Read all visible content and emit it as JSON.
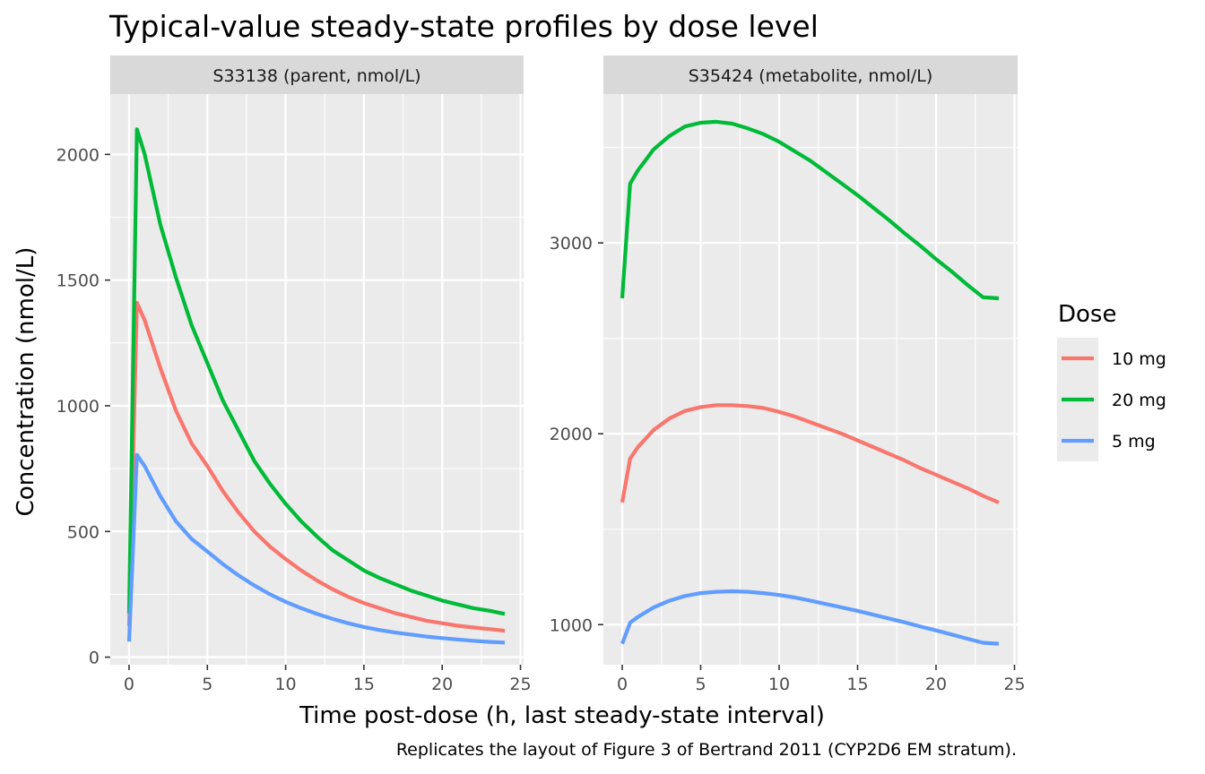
{
  "chart_data": {
    "type": "line",
    "title": "Typical-value steady-state profiles by dose level",
    "xlabel": "Time post-dose (h, last steady-state interval)",
    "ylabel": "Concentration (nmol/L)",
    "caption": "Replicates the layout of Figure 3 of Bertrand 2011 (CYP2D6 EM stratum).",
    "legend": {
      "title": "Dose",
      "position": "right",
      "entries": [
        {
          "label": "10 mg",
          "color": "#F8766D"
        },
        {
          "label": "20 mg",
          "color": "#00BA38"
        },
        {
          "label": "5 mg",
          "color": "#619CFF"
        }
      ]
    },
    "grid": true,
    "panels": [
      {
        "strip": "S33138 (parent, nmol/L)",
        "xlim": [
          -1.2,
          25.2
        ],
        "ylim": [
          -30,
          2240
        ],
        "x_ticks": [
          0,
          5,
          10,
          15,
          20,
          25
        ],
        "x_tick_labels": [
          "0",
          "5",
          "10",
          "15",
          "20",
          "25"
        ],
        "y_ticks": [
          0,
          500,
          1000,
          1500,
          2000
        ],
        "y_tick_labels": [
          "0",
          "500",
          "1000",
          "1500",
          "2000"
        ],
        "series": [
          {
            "name": "10 mg",
            "color": "#F8766D",
            "x": [
              0,
              0.5,
              1,
              2,
              3,
              4,
              5,
              6,
              7,
              8,
              9,
              10,
              11,
              12,
              13,
              14,
              15,
              16,
              17,
              18,
              19,
              20,
              21,
              22,
              23,
              24
            ],
            "y": [
              125,
              1410,
              1340,
              1150,
              980,
              850,
              760,
              660,
              575,
              500,
              440,
              390,
              345,
              305,
              270,
              240,
              215,
              195,
              175,
              160,
              145,
              135,
              125,
              118,
              112,
              105
            ]
          },
          {
            "name": "20 mg",
            "color": "#00BA38",
            "x": [
              0,
              0.5,
              1,
              2,
              3,
              4,
              5,
              6,
              7,
              8,
              9,
              10,
              11,
              12,
              13,
              14,
              15,
              16,
              17,
              18,
              19,
              20,
              21,
              22,
              23,
              24
            ],
            "y": [
              175,
              2100,
              2000,
              1720,
              1510,
              1320,
              1170,
              1020,
              900,
              780,
              690,
              610,
              540,
              480,
              425,
              385,
              345,
              315,
              290,
              265,
              245,
              225,
              210,
              195,
              185,
              172
            ]
          },
          {
            "name": "5 mg",
            "color": "#619CFF",
            "x": [
              0,
              0.5,
              1,
              2,
              3,
              4,
              5,
              6,
              7,
              8,
              9,
              10,
              11,
              12,
              13,
              14,
              15,
              16,
              17,
              18,
              19,
              20,
              21,
              22,
              23,
              24
            ],
            "y": [
              62,
              805,
              760,
              640,
              540,
              470,
              420,
              370,
              325,
              285,
              250,
              220,
              195,
              172,
              152,
              135,
              120,
              108,
              98,
              90,
              82,
              76,
              70,
              65,
              61,
              58
            ]
          }
        ]
      },
      {
        "strip": "S35424 (metabolite, nmol/L)",
        "xlim": [
          -1.2,
          25.2
        ],
        "ylim": [
          790,
          3780
        ],
        "x_ticks": [
          0,
          5,
          10,
          15,
          20,
          25
        ],
        "x_tick_labels": [
          "0",
          "5",
          "10",
          "15",
          "20",
          "25"
        ],
        "y_ticks": [
          1000,
          2000,
          3000
        ],
        "y_tick_labels": [
          "1000",
          "2000",
          "3000"
        ],
        "series": [
          {
            "name": "10 mg",
            "color": "#F8766D",
            "x": [
              0,
              0.5,
              1,
              2,
              3,
              4,
              5,
              6,
              7,
              8,
              9,
              10,
              11,
              12,
              13,
              14,
              15,
              16,
              17,
              18,
              19,
              20,
              21,
              22,
              23,
              24
            ],
            "y": [
              1640,
              1870,
              1930,
              2020,
              2080,
              2120,
              2140,
              2150,
              2150,
              2145,
              2135,
              2115,
              2090,
              2060,
              2030,
              2000,
              1965,
              1930,
              1895,
              1860,
              1820,
              1785,
              1750,
              1715,
              1675,
              1640
            ]
          },
          {
            "name": "20 mg",
            "color": "#00BA38",
            "x": [
              0,
              0.5,
              1,
              2,
              3,
              4,
              5,
              6,
              7,
              8,
              9,
              10,
              11,
              12,
              13,
              14,
              15,
              16,
              17,
              18,
              19,
              20,
              21,
              22,
              23,
              24
            ],
            "y": [
              2710,
              3310,
              3380,
              3490,
              3560,
              3610,
              3630,
              3635,
              3625,
              3600,
              3570,
              3530,
              3480,
              3430,
              3370,
              3310,
              3250,
              3185,
              3120,
              3050,
              2985,
              2915,
              2850,
              2780,
              2715,
              2710
            ]
          },
          {
            "name": "5 mg",
            "color": "#619CFF",
            "x": [
              0,
              0.5,
              1,
              2,
              3,
              4,
              5,
              6,
              7,
              8,
              9,
              10,
              11,
              12,
              13,
              14,
              15,
              16,
              17,
              18,
              19,
              20,
              21,
              22,
              23,
              24
            ],
            "y": [
              900,
              1010,
              1040,
              1090,
              1125,
              1150,
              1165,
              1172,
              1175,
              1172,
              1165,
              1155,
              1142,
              1125,
              1108,
              1090,
              1072,
              1052,
              1032,
              1012,
              990,
              970,
              948,
              926,
              905,
              900
            ]
          }
        ]
      }
    ]
  }
}
